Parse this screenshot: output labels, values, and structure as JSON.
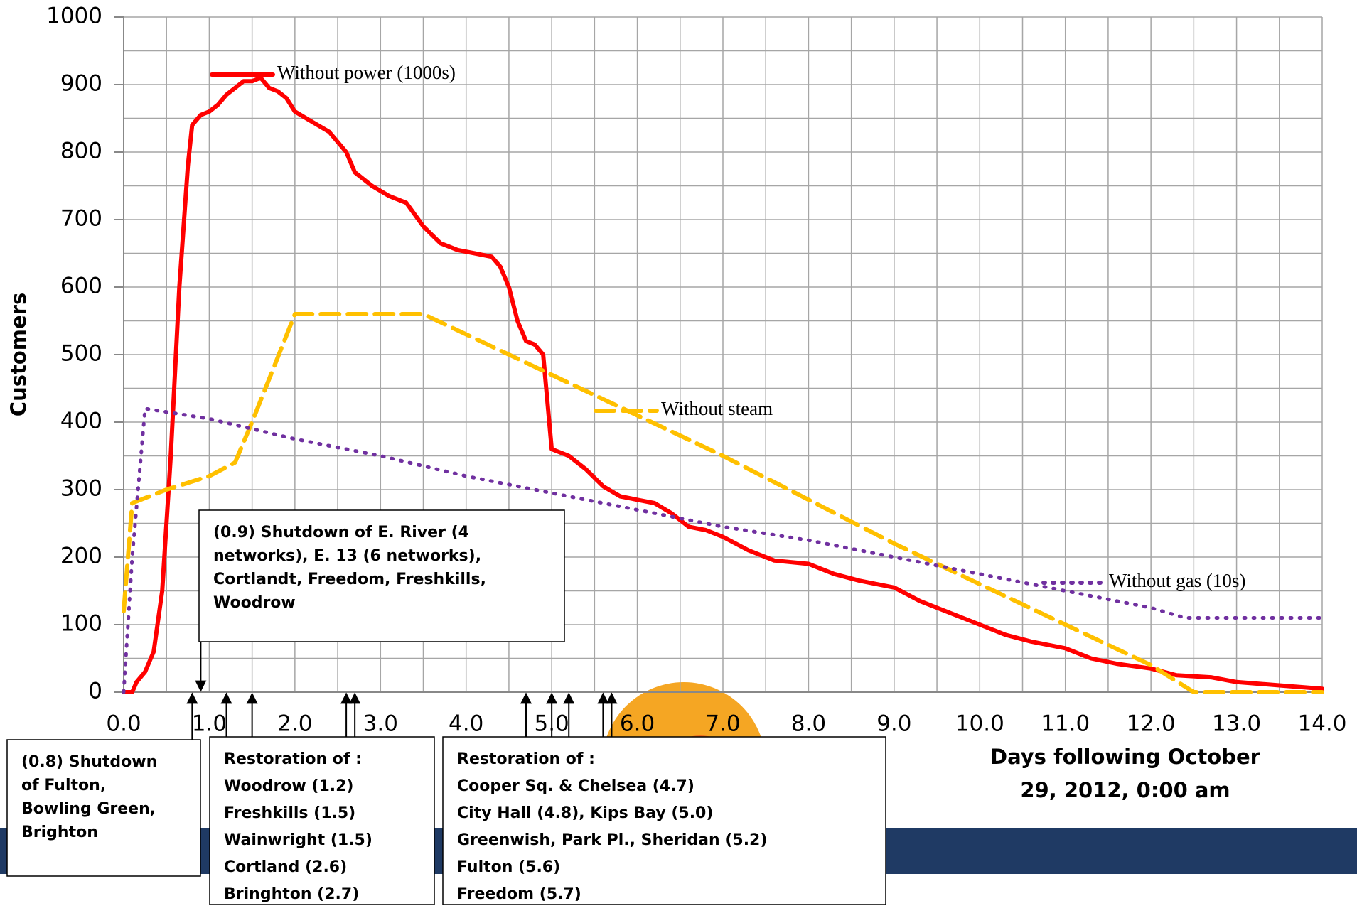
{
  "chart_data": {
    "type": "line",
    "y_label": "Customers",
    "x_label": [
      "Days following October",
      "29, 2012, 0:00 am"
    ],
    "xlim": [
      0,
      14
    ],
    "ylim": [
      0,
      1000
    ],
    "xticks": [
      {
        "value": 0,
        "label": "0.0"
      },
      {
        "value": 1,
        "label": "1.0"
      },
      {
        "value": 2,
        "label": "2.0"
      },
      {
        "value": 3,
        "label": "3.0"
      },
      {
        "value": 4,
        "label": "4.0"
      },
      {
        "value": 5,
        "label": "5.0"
      },
      {
        "value": 6,
        "label": "6.0"
      },
      {
        "value": 7,
        "label": "7.0"
      },
      {
        "value": 8,
        "label": "8.0"
      },
      {
        "value": 9,
        "label": "9.0"
      },
      {
        "value": 10,
        "label": "10.0"
      },
      {
        "value": 11,
        "label": "11.0"
      },
      {
        "value": 12,
        "label": "12.0"
      },
      {
        "value": 13,
        "label": "13.0"
      },
      {
        "value": 14,
        "label": "14.0"
      }
    ],
    "yticks": [
      0,
      100,
      200,
      300,
      400,
      500,
      600,
      700,
      800,
      900,
      1000
    ],
    "grid": true,
    "series": [
      {
        "name": "Without power  (1000s)",
        "color": "#ff0000",
        "style": "solid",
        "x": [
          0,
          0.1,
          0.15,
          0.25,
          0.35,
          0.45,
          0.55,
          0.65,
          0.75,
          0.8,
          0.9,
          1.0,
          1.1,
          1.2,
          1.3,
          1.4,
          1.5,
          1.6,
          1.7,
          1.8,
          1.9,
          2.0,
          2.2,
          2.4,
          2.6,
          2.7,
          2.9,
          3.1,
          3.3,
          3.5,
          3.7,
          3.9,
          4.1,
          4.3,
          4.4,
          4.5,
          4.6,
          4.7,
          4.8,
          4.9,
          4.95,
          5.0,
          5.2,
          5.4,
          5.6,
          5.8,
          6.0,
          6.2,
          6.4,
          6.6,
          6.8,
          7.0,
          7.3,
          7.6,
          8.0,
          8.3,
          8.6,
          9.0,
          9.3,
          9.6,
          10.0,
          10.3,
          10.6,
          11.0,
          11.3,
          11.6,
          12.0,
          12.3,
          12.7,
          13.0,
          13.5,
          14.0
        ],
        "values": [
          0,
          0,
          15,
          30,
          60,
          150,
          350,
          600,
          780,
          840,
          855,
          860,
          870,
          885,
          895,
          905,
          905,
          910,
          895,
          890,
          880,
          860,
          845,
          830,
          800,
          770,
          750,
          735,
          725,
          690,
          665,
          655,
          650,
          645,
          630,
          600,
          550,
          520,
          515,
          500,
          430,
          360,
          350,
          330,
          305,
          290,
          285,
          280,
          265,
          245,
          240,
          230,
          210,
          195,
          190,
          175,
          165,
          155,
          135,
          120,
          100,
          85,
          75,
          65,
          50,
          42,
          35,
          25,
          22,
          15,
          10,
          5
        ]
      },
      {
        "name": "Without steam",
        "color": "#ffc000",
        "style": "dashed",
        "x": [
          0,
          0.1,
          0.5,
          1.0,
          1.3,
          1.5,
          2.0,
          3.5,
          5.0,
          7.0,
          9.0,
          11.0,
          12.0,
          12.5,
          14.0
        ],
        "values": [
          120,
          280,
          300,
          320,
          340,
          400,
          560,
          560,
          470,
          350,
          220,
          100,
          40,
          0,
          0
        ]
      },
      {
        "name": "Without gas (10s)",
        "color": "#7030a0",
        "style": "dotted",
        "x": [
          0,
          0.1,
          0.25,
          1.0,
          2.0,
          3.0,
          4.0,
          5.0,
          6.0,
          7.0,
          8.0,
          9.0,
          10.0,
          11.0,
          12.0,
          12.4,
          14.0
        ],
        "values": [
          0,
          200,
          420,
          405,
          375,
          350,
          320,
          295,
          270,
          245,
          225,
          200,
          175,
          150,
          125,
          110,
          110
        ]
      }
    ],
    "annotations": [
      {
        "lines": [
          "(0.9) Shutdown of E. River (4",
          "networks), E. 13 (6 networks),",
          "Cortlandt, Freedom, Freshkills,",
          "Woodrow"
        ],
        "arrow_x": [
          0.9
        ]
      },
      {
        "lines": [
          "(0.8) Shutdown",
          "of Fulton,",
          "Bowling Green,",
          "Brighton"
        ],
        "arrow_x": [
          0.8
        ]
      },
      {
        "lines": [
          "Restoration of :",
          "Woodrow (1.2)",
          "Freshkills (1.5)",
          "Wainwright (1.5)",
          "Cortland (2.6)",
          "Bringhton (2.7)"
        ],
        "arrow_x": [
          1.2,
          1.5,
          2.6,
          2.7
        ]
      },
      {
        "lines": [
          "Restoration of :",
          "Cooper Sq. & Chelsea (4.7)",
          "City Hall (4.8), Kips Bay (5.0)",
          "Greenwish, Park Pl., Sheridan (5.2)",
          "Fulton (5.6)",
          "Freedom (5.7)"
        ],
        "arrow_x": [
          4.7,
          5.0,
          5.2,
          5.6,
          5.7
        ]
      }
    ]
  }
}
